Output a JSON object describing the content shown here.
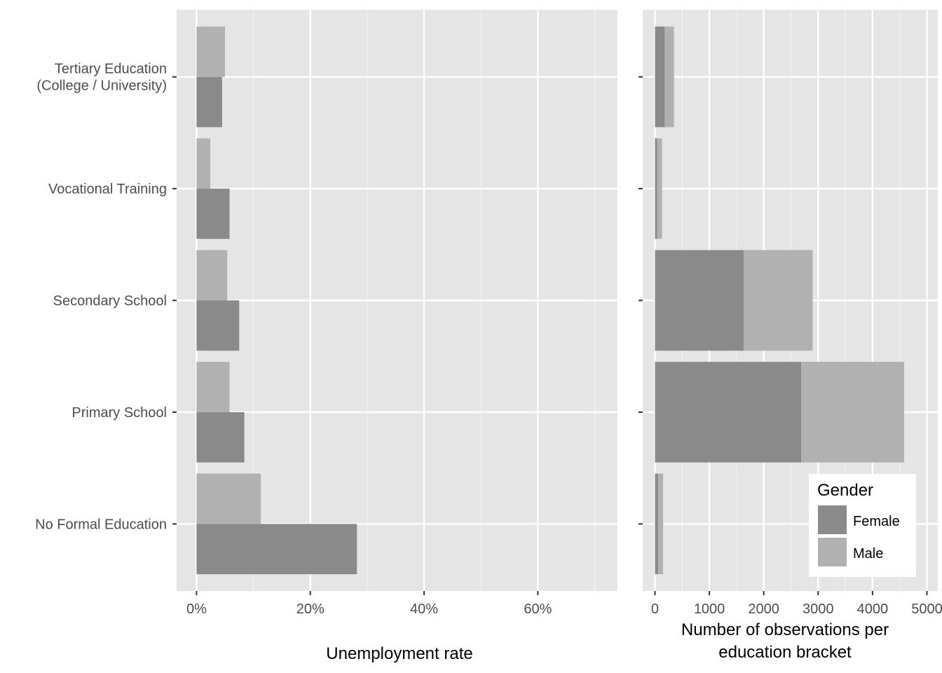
{
  "chart_data": [
    {
      "type": "bar",
      "orientation": "horizontal",
      "categories": [
        "Tertiary Education\n(College / University)",
        "Vocational Training",
        "Secondary School",
        "Primary School",
        "No Formal Education"
      ],
      "series": [
        {
          "name": "Female",
          "color": "#8a8a8a",
          "values": [
            0.045,
            0.058,
            0.075,
            0.084,
            0.282
          ]
        },
        {
          "name": "Male",
          "color": "#b1b1b1",
          "values": [
            0.05,
            0.024,
            0.054,
            0.058,
            0.113
          ]
        }
      ],
      "xlabel": "Unemployment rate",
      "ylabel": "",
      "xlim": [
        -0.035,
        0.74
      ],
      "xticks": [
        0,
        0.2,
        0.4,
        0.6
      ],
      "xtick_labels": [
        "0%",
        "20%",
        "40%",
        "60%"
      ],
      "grid": true,
      "background": "#e5e5e5"
    },
    {
      "type": "bar",
      "orientation": "horizontal",
      "stacked": true,
      "categories": [
        "Tertiary Education\n(College / University)",
        "Vocational Training",
        "Secondary School",
        "Primary School",
        "No Formal Education"
      ],
      "series": [
        {
          "name": "Female",
          "color": "#8a8a8a",
          "values": [
            180,
            40,
            1630,
            2690,
            60
          ]
        },
        {
          "name": "Male",
          "color": "#b1b1b1",
          "values": [
            170,
            90,
            1270,
            1890,
            90
          ]
        }
      ],
      "xlabel": "Number of observations per\neducation bracket",
      "ylabel": "",
      "xlim": [
        -225,
        5200
      ],
      "xticks": [
        0,
        1000,
        2000,
        3000,
        4000,
        5000
      ],
      "xtick_labels": [
        "0",
        "1000",
        "2000",
        "3000",
        "4000",
        "5000"
      ],
      "grid": true,
      "background": "#e5e5e5",
      "legend": {
        "title": "Gender",
        "position": "bottom-right",
        "entries": [
          "Female",
          "Male"
        ]
      }
    }
  ]
}
